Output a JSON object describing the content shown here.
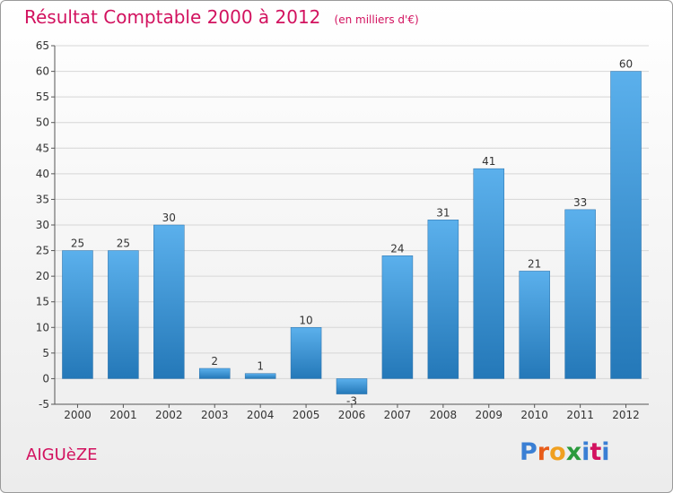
{
  "header": {
    "title": "Résultat Comptable 2000 à 2012",
    "subtitle": "(en milliers d'€)"
  },
  "footer": {
    "commune": "AIGUèZE",
    "logo_text": "Proxiti",
    "logo_colors": [
      "#3a7fd4",
      "#e85c1a",
      "#f0a020",
      "#2a9a3c",
      "#3a7fd4",
      "#d2125f",
      "#3a7fd4"
    ]
  },
  "colors": {
    "title": "#d2125f",
    "bar_top": "#5bb0ec",
    "bar_bottom": "#2478b8",
    "grid": "#d6d6d6"
  },
  "chart_data": {
    "type": "bar",
    "title": "Résultat Comptable 2000 à 2012",
    "xlabel": "",
    "ylabel": "(en milliers d'€)",
    "categories": [
      "2000",
      "2001",
      "2002",
      "2003",
      "2004",
      "2005",
      "2006",
      "2007",
      "2008",
      "2009",
      "2010",
      "2011",
      "2012"
    ],
    "values": [
      25,
      25,
      30,
      2,
      1,
      10,
      -3,
      24,
      31,
      41,
      21,
      33,
      60
    ],
    "ylim": [
      -5,
      65
    ],
    "yticks": [
      -5,
      0,
      5,
      10,
      15,
      20,
      25,
      30,
      35,
      40,
      45,
      50,
      55,
      60,
      65
    ],
    "grid": true
  }
}
